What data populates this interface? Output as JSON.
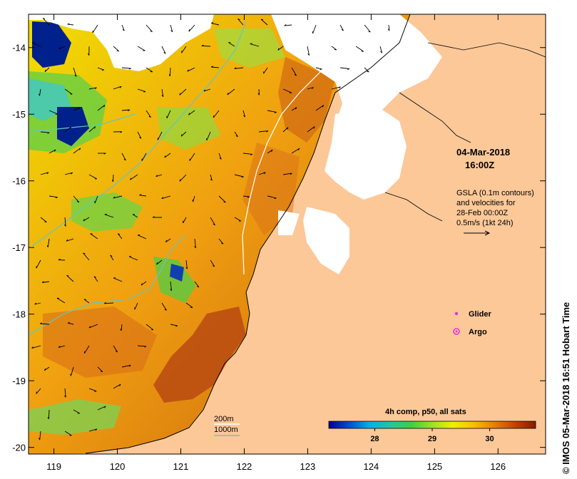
{
  "map": {
    "date_line1": "04-Mar-2018",
    "date_line2": "16:00Z",
    "gsla_lines": [
      "GSLA (0.1m contours)",
      "and velocities for",
      "28-Feb 00:00Z",
      "0.5m/s (1kt 24h)"
    ],
    "legend": {
      "glider": "Glider",
      "argo": "Argo",
      "glider_color": "#e030e0",
      "argo_color": "#e030e0"
    },
    "depth_legend": {
      "d200": "200m",
      "d1000": "1000m",
      "d200_color": "#ffffff",
      "d1000_color": "#5fc8c8"
    },
    "colorbar": {
      "title": "4h comp, p50, all sats",
      "ticks": [
        {
          "value": 28,
          "label": "28"
        },
        {
          "value": 29,
          "label": "29"
        },
        {
          "value": 30,
          "label": "30"
        }
      ],
      "min": 27.2,
      "max": 30.8,
      "colors": [
        "#00008b",
        "#0050d0",
        "#00b4e0",
        "#20c8a0",
        "#40d040",
        "#a0e020",
        "#f0f000",
        "#f8c000",
        "#e88000",
        "#c84000",
        "#8b1a00"
      ]
    },
    "credit": "© IMOS 05-Mar-2018 16:51 Hobart Time",
    "x_ticks": [
      {
        "value": 119,
        "label": "119"
      },
      {
        "value": 120,
        "label": "120"
      },
      {
        "value": 121,
        "label": "121"
      },
      {
        "value": 122,
        "label": "122"
      },
      {
        "value": 123,
        "label": "123"
      },
      {
        "value": 124,
        "label": "124"
      },
      {
        "value": 125,
        "label": "125"
      },
      {
        "value": 126,
        "label": "126"
      }
    ],
    "y_ticks": [
      {
        "value": -14,
        "label": "-14"
      },
      {
        "value": -15,
        "label": "-15"
      },
      {
        "value": -16,
        "label": "-16"
      },
      {
        "value": -17,
        "label": "-17"
      },
      {
        "value": -18,
        "label": "-18"
      },
      {
        "value": -19,
        "label": "-19"
      },
      {
        "value": -20,
        "label": "-20"
      }
    ],
    "land_color": "#fcc898",
    "cloud_color": "#ffffff",
    "lon_range": [
      118.6,
      126.75
    ],
    "lat_range": [
      -20.1,
      -13.5
    ]
  }
}
